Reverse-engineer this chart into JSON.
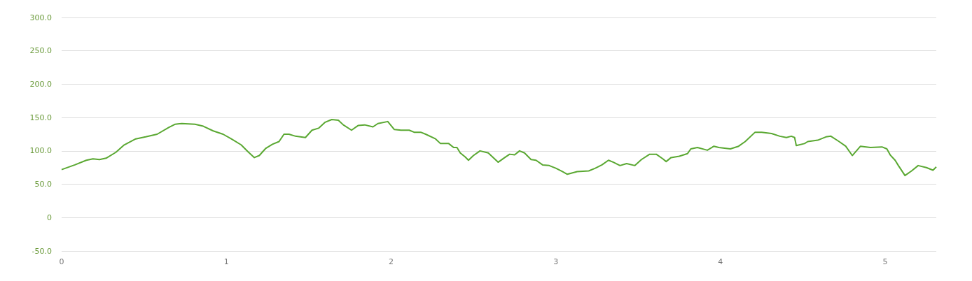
{
  "chart_data": {
    "type": "line",
    "x": [
      0,
      0.08,
      0.15,
      0.19,
      0.23,
      0.27,
      0.33,
      0.38,
      0.45,
      0.51,
      0.58,
      0.65,
      0.69,
      0.73,
      0.81,
      0.86,
      0.92,
      0.98,
      1.03,
      1.09,
      1.13,
      1.17,
      1.2,
      1.24,
      1.28,
      1.32,
      1.35,
      1.38,
      1.42,
      1.48,
      1.52,
      1.56,
      1.6,
      1.64,
      1.68,
      1.71,
      1.76,
      1.8,
      1.84,
      1.89,
      1.92,
      1.98,
      2.02,
      2.06,
      2.11,
      2.14,
      2.18,
      2.21,
      2.27,
      2.3,
      2.35,
      2.38,
      2.4,
      2.42,
      2.45,
      2.47,
      2.5,
      2.54,
      2.59,
      2.65,
      2.69,
      2.72,
      2.75,
      2.78,
      2.81,
      2.85,
      2.88,
      2.92,
      2.96,
      3.0,
      3.04,
      3.07,
      3.13,
      3.2,
      3.24,
      3.28,
      3.32,
      3.35,
      3.39,
      3.43,
      3.48,
      3.52,
      3.57,
      3.61,
      3.65,
      3.67,
      3.7,
      3.75,
      3.8,
      3.82,
      3.86,
      3.92,
      3.96,
      3.99,
      4.06,
      4.11,
      4.15,
      4.21,
      4.25,
      4.31,
      4.36,
      4.4,
      4.43,
      4.45,
      4.46,
      4.51,
      4.53,
      4.59,
      4.64,
      4.67,
      4.72,
      4.76,
      4.8,
      4.85,
      4.91,
      4.98,
      5.01,
      5.03,
      5.06,
      5.08,
      5.12,
      5.16,
      5.2,
      5.25,
      5.29,
      5.31
    ],
    "series": [
      {
        "color": "#5aa832",
        "values": [
          72,
          79,
          86,
          88,
          87,
          89,
          98,
          109,
          118,
          121,
          125,
          135,
          140,
          141,
          140,
          137,
          130,
          125,
          118,
          109,
          99,
          90,
          93,
          104,
          110,
          114,
          125,
          125,
          122,
          120,
          131,
          134,
          143,
          147,
          146,
          139,
          131,
          138,
          139,
          136,
          141,
          144,
          132,
          131,
          131,
          128,
          128,
          125,
          118,
          111,
          111,
          105,
          105,
          97,
          91,
          86,
          93,
          100,
          97,
          83,
          90,
          95,
          94,
          100,
          97,
          87,
          86,
          79,
          78,
          74,
          69,
          65,
          69,
          70,
          74,
          79,
          86,
          83,
          78,
          81,
          78,
          87,
          95,
          95,
          88,
          84,
          90,
          92,
          96,
          103,
          105,
          101,
          107,
          105,
          103,
          107,
          114,
          128,
          128,
          126,
          122,
          120,
          122,
          120,
          108,
          111,
          114,
          116,
          121,
          122,
          114,
          107,
          93,
          107,
          105,
          106,
          103,
          94,
          86,
          78,
          63,
          70,
          78,
          75,
          71,
          76
        ]
      }
    ],
    "xlim": [
      0,
      5.31
    ],
    "xticks": [
      0,
      1,
      2,
      3,
      4,
      5
    ],
    "ylim": [
      -50,
      300
    ],
    "yticks": [
      {
        "value": -50,
        "label": "-50.0"
      },
      {
        "value": 0,
        "label": "0"
      },
      {
        "value": 50,
        "label": "50.0"
      },
      {
        "value": 100,
        "label": "100.0"
      },
      {
        "value": 150,
        "label": "150.0"
      },
      {
        "value": 200,
        "label": "200.0"
      },
      {
        "value": 250,
        "label": "250.0"
      },
      {
        "value": 300,
        "label": "300.0"
      }
    ],
    "grid": "y",
    "marker": "none",
    "line_style": "solid"
  }
}
